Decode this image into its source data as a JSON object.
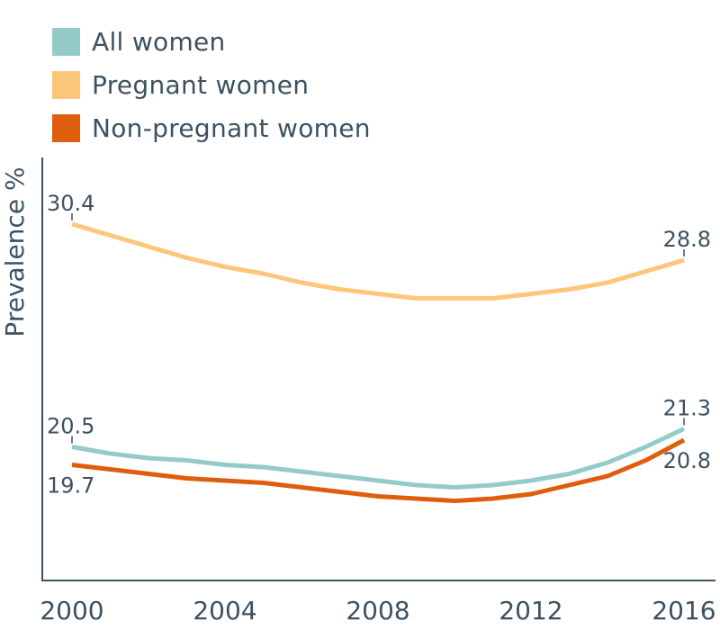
{
  "chart_data": {
    "type": "line",
    "title": "",
    "xlabel": "",
    "ylabel": "Prevalence %",
    "xlim": [
      2000,
      2016
    ],
    "ylim": [
      14.56,
      33.36
    ],
    "x_ticks": [
      "2000",
      "2004",
      "2008",
      "2012",
      "2016"
    ],
    "x": [
      2000,
      2001,
      2002,
      2003,
      2004,
      2005,
      2006,
      2007,
      2008,
      2009,
      2010,
      2011,
      2012,
      2013,
      2014,
      2015,
      2016
    ],
    "grid": false,
    "legend_position": "top-left",
    "series": [
      {
        "name": "All women",
        "color": "#94cbc9",
        "values": [
          20.5,
          20.2,
          20.0,
          19.9,
          19.7,
          19.6,
          19.4,
          19.2,
          19.0,
          18.8,
          18.7,
          18.8,
          19.0,
          19.3,
          19.8,
          20.5,
          21.3
        ],
        "labels": [
          {
            "x": 2000,
            "text": "20.5",
            "position": "above"
          },
          {
            "x": 2016,
            "text": "21.3",
            "position": "above"
          }
        ]
      },
      {
        "name": "Pregnant women",
        "color": "#fcc77b",
        "values": [
          30.4,
          29.9,
          29.4,
          28.9,
          28.5,
          28.2,
          27.8,
          27.5,
          27.3,
          27.1,
          27.1,
          27.1,
          27.3,
          27.5,
          27.8,
          28.3,
          28.8
        ],
        "labels": [
          {
            "x": 2000,
            "text": "30.4",
            "position": "above"
          },
          {
            "x": 2016,
            "text": "28.8",
            "position": "above"
          }
        ]
      },
      {
        "name": "Non-pregnant women",
        "color": "#e05d0e",
        "values": [
          19.7,
          19.5,
          19.3,
          19.1,
          19.0,
          18.9,
          18.7,
          18.5,
          18.3,
          18.2,
          18.1,
          18.2,
          18.4,
          18.8,
          19.2,
          19.9,
          20.8
        ],
        "labels": [
          {
            "x": 2000,
            "text": "19.7",
            "position": "below"
          },
          {
            "x": 2016,
            "text": "20.8",
            "position": "below"
          }
        ]
      }
    ]
  }
}
